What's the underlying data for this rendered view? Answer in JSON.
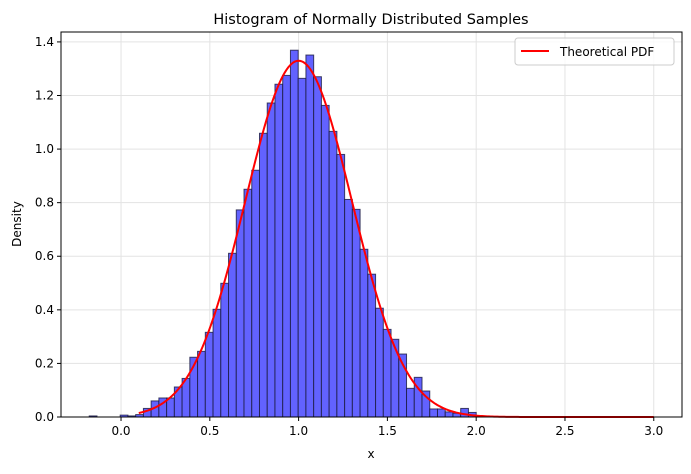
{
  "chart_data": {
    "type": "bar",
    "title": "Histogram of Normally Distributed Samples",
    "xlabel": "x",
    "ylabel": "Density",
    "xlim": [
      -0.338,
      3.159
    ],
    "ylim": [
      0,
      1.437
    ],
    "xticks": [
      "0.0",
      "0.5",
      "1.0",
      "1.5",
      "2.0",
      "2.5",
      "3.0"
    ],
    "yticks": [
      "0.0",
      "0.2",
      "0.4",
      "0.6",
      "0.8",
      "1.0",
      "1.2",
      "1.4"
    ],
    "grid": true,
    "legend_placement": "top-right",
    "histogram": {
      "bin_range": [
        -0.179,
        2.0
      ],
      "bins": 50,
      "densities": [
        0.004,
        0,
        0,
        0,
        0.007,
        0.004,
        0.009,
        0.032,
        0.06,
        0.071,
        0.071,
        0.112,
        0.144,
        0.223,
        0.245,
        0.316,
        0.402,
        0.499,
        0.611,
        0.773,
        0.85,
        0.921,
        1.059,
        1.172,
        1.242,
        1.275,
        1.369,
        1.264,
        1.351,
        1.27,
        1.163,
        1.066,
        0.98,
        0.812,
        0.775,
        0.626,
        0.533,
        0.406,
        0.327,
        0.29,
        0.235,
        0.107,
        0.148,
        0.097,
        0.03,
        0.03,
        0.019,
        0.014,
        0.032,
        0.017
      ],
      "color": "#6262ff",
      "edge_color": "#1a1a40"
    },
    "series": [
      {
        "name": "Theoretical PDF",
        "kind": "normal",
        "mean": 1.0,
        "std": 0.3,
        "x_range": [
          0.1,
          3.0
        ],
        "color": "#ff0000"
      }
    ]
  }
}
